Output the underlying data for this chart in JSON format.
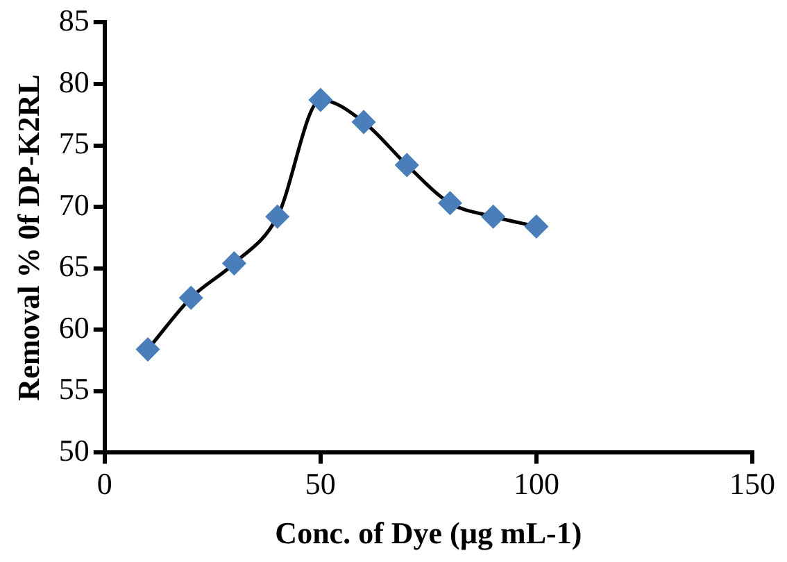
{
  "chart_data": {
    "type": "line",
    "xlabel": "Conc. of Dye (µg mL-1)",
    "ylabel": "Removal % 0f DP-K2RL",
    "x": [
      10,
      20,
      30,
      40,
      50,
      60,
      70,
      80,
      90,
      100
    ],
    "series": [
      {
        "color": "#4a7ebb",
        "values": [
          58.4,
          62.6,
          65.4,
          69.2,
          78.7,
          76.9,
          73.4,
          70.3,
          69.2,
          68.4
        ]
      }
    ],
    "xlim": [
      0,
      150
    ],
    "xticks": [
      0,
      50,
      100,
      150
    ],
    "ylim": [
      50,
      85
    ],
    "yticks": [
      50,
      55,
      60,
      65,
      70,
      75,
      80,
      85
    ],
    "grid": false,
    "legend": false,
    "marker": "diamond",
    "line_style": "solid"
  }
}
